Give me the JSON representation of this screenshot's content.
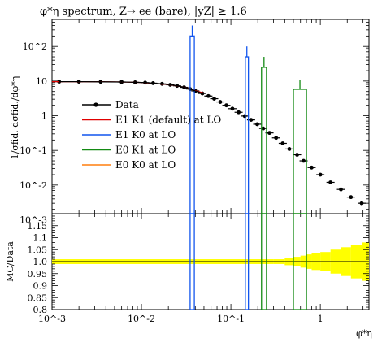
{
  "chart_data": {
    "type": "line",
    "title": "φ*η spectrum, Z→ ee (bare), |yZ| ≥ 1.6",
    "xlabel": "φ*η",
    "ylabel": "1/σfid. dσfid./dφ*η",
    "ratio_ylabel": "MC/Data",
    "xscale": "log",
    "yscale": "log",
    "xlim": [
      0.001,
      3.5
    ],
    "ylim": [
      0.0015,
      600
    ],
    "ratio_ylim": [
      0.8,
      1.2
    ],
    "x_tick_labels": [
      "10^-3",
      "10^-2",
      "10^-1",
      "1"
    ],
    "y_tick_labels": [
      "10^-3",
      "10^-2",
      "10^-1",
      "1",
      "10",
      "10^2"
    ],
    "ratio_tick_labels": [
      "0.8",
      "0.85",
      "0.9",
      "0.95",
      "1.0",
      "1.05",
      "1.1",
      "1.15"
    ],
    "legend_position": "center-left",
    "series": [
      {
        "name": "Data",
        "color": "#000000",
        "kind": "points",
        "x": [
          0.0012,
          0.002,
          0.0035,
          0.006,
          0.0085,
          0.011,
          0.0135,
          0.017,
          0.021,
          0.025,
          0.03,
          0.035,
          0.04,
          0.048,
          0.056,
          0.065,
          0.076,
          0.089,
          0.104,
          0.122,
          0.143,
          0.168,
          0.197,
          0.23,
          0.27,
          0.32,
          0.38,
          0.45,
          0.55,
          0.65,
          0.8,
          1.0,
          1.3,
          1.7,
          2.2,
          2.9
        ],
        "y": [
          9.6,
          9.6,
          9.5,
          9.4,
          9.2,
          9.0,
          8.7,
          8.3,
          7.8,
          7.3,
          6.6,
          5.9,
          5.2,
          4.4,
          3.7,
          3.1,
          2.5,
          2.0,
          1.6,
          1.26,
          0.98,
          0.76,
          0.57,
          0.43,
          0.32,
          0.23,
          0.16,
          0.11,
          0.075,
          0.05,
          0.032,
          0.02,
          0.012,
          0.0075,
          0.0045,
          0.003
        ]
      },
      {
        "name": "E1 K1 (default) at LO",
        "color": "#e00000",
        "kind": "line",
        "x": [
          0.001,
          0.005,
          0.01,
          0.02,
          0.03,
          0.05
        ],
        "y": [
          9.6,
          9.5,
          9.1,
          7.9,
          6.7,
          4.5
        ]
      },
      {
        "name": "E1 K0 at LO",
        "color": "#1155ee",
        "kind": "spike",
        "spikes": [
          {
            "x0": 0.035,
            "x1": 0.039,
            "y": 200,
            "err": 400
          },
          {
            "x0": 0.145,
            "x1": 0.157,
            "y": 50,
            "err": 100
          }
        ]
      },
      {
        "name": "E0 K1 at LO",
        "color": "#138a13",
        "kind": "spike",
        "spikes": [
          {
            "x0": 0.22,
            "x1": 0.25,
            "y": 25,
            "err": 50
          },
          {
            "x0": 0.5,
            "x1": 0.7,
            "y": 5.8,
            "err": 11
          }
        ]
      },
      {
        "name": "E0 K0 at LO",
        "color": "#ff7f0e",
        "kind": "line",
        "x": [],
        "y": []
      }
    ],
    "ratio_band": {
      "color": "#ffff00",
      "x": [
        0.001,
        0.3,
        0.4,
        0.5,
        0.6,
        0.7,
        0.8,
        1.0,
        1.3,
        1.7,
        2.2,
        2.9,
        3.5
      ],
      "lo": [
        0.99,
        0.99,
        0.985,
        0.98,
        0.975,
        0.97,
        0.965,
        0.96,
        0.95,
        0.94,
        0.93,
        0.92,
        0.91
      ],
      "hi": [
        1.01,
        1.01,
        1.015,
        1.02,
        1.025,
        1.03,
        1.035,
        1.04,
        1.05,
        1.06,
        1.07,
        1.08,
        1.09
      ]
    },
    "grid": false
  }
}
